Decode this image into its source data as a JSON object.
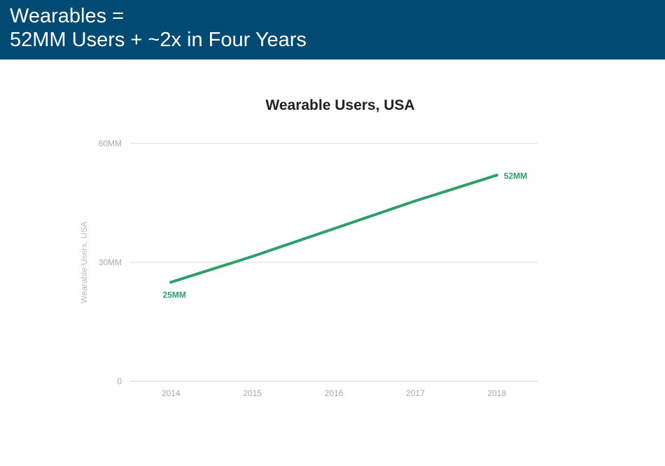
{
  "header": {
    "line1": "Wearables =",
    "line2": "52MM Users + ~2x in Four Years"
  },
  "colors": {
    "header_bg": "#004a73",
    "series": "#2e9e6a",
    "grid": "#dddddd",
    "tick_text": "#aaaaaa"
  },
  "chart_data": {
    "type": "line",
    "title": "Wearable Users, USA",
    "xlabel": "",
    "ylabel": "Wearable Users, USA",
    "categories": [
      "2014",
      "2015",
      "2016",
      "2017",
      "2018"
    ],
    "series": [
      {
        "values": [
          25,
          31.5,
          38.5,
          45.5,
          52
        ]
      }
    ],
    "ylim": [
      0,
      60
    ],
    "y_ticks": [
      {
        "value": 0,
        "label": "0"
      },
      {
        "value": 30,
        "label": "30MM"
      },
      {
        "value": 60,
        "label": "60MM"
      }
    ],
    "data_labels": [
      {
        "index": 0,
        "text": "25MM"
      },
      {
        "index": 4,
        "text": "52MM"
      }
    ],
    "grid": true,
    "legend": "none"
  }
}
